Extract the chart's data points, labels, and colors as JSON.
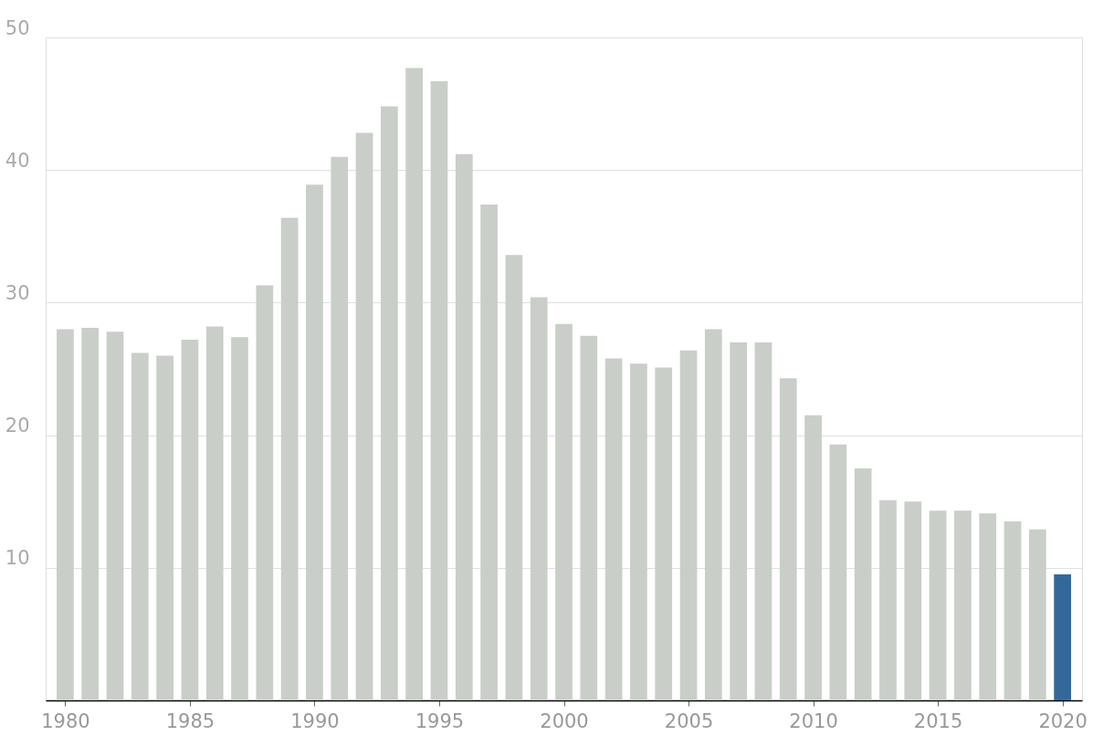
{
  "chart_data": {
    "type": "bar",
    "x": [
      1980,
      1981,
      1982,
      1983,
      1984,
      1985,
      1986,
      1987,
      1988,
      1989,
      1990,
      1991,
      1992,
      1993,
      1994,
      1995,
      1996,
      1997,
      1998,
      1999,
      2000,
      2001,
      2002,
      2003,
      2004,
      2005,
      2006,
      2007,
      2008,
      2009,
      2010,
      2011,
      2012,
      2013,
      2014,
      2015,
      2016,
      2017,
      2018,
      2019,
      2020
    ],
    "values": [
      28.0,
      28.1,
      27.8,
      26.2,
      26.0,
      27.2,
      28.2,
      27.4,
      31.3,
      36.4,
      38.9,
      41.0,
      42.8,
      44.8,
      47.7,
      46.7,
      41.2,
      37.4,
      33.6,
      30.4,
      28.4,
      27.5,
      25.8,
      25.4,
      25.1,
      26.4,
      28.0,
      27.0,
      27.0,
      24.3,
      21.5,
      19.3,
      17.5,
      15.1,
      15.0,
      14.3,
      14.3,
      14.1,
      13.5,
      12.9,
      9.5
    ],
    "colors": [
      "#c9cec9",
      "#c9cec9",
      "#c9cec9",
      "#c9cec9",
      "#c9cec9",
      "#c9cec9",
      "#c9cec9",
      "#c9cec9",
      "#c9cec9",
      "#c9cec9",
      "#c9cec9",
      "#c9cec9",
      "#c9cec9",
      "#c9cec9",
      "#c9cec9",
      "#c9cec9",
      "#c9cec9",
      "#c9cec9",
      "#c9cec9",
      "#c9cec9",
      "#c9cec9",
      "#c9cec9",
      "#c9cec9",
      "#c9cec9",
      "#c9cec9",
      "#c9cec9",
      "#c9cec9",
      "#c9cec9",
      "#c9cec9",
      "#c9cec9",
      "#c9cec9",
      "#c9cec9",
      "#c9cec9",
      "#c9cec9",
      "#c9cec9",
      "#c9cec9",
      "#c9cec9",
      "#c9cec9",
      "#c9cec9",
      "#c9cec9",
      "#35689a"
    ],
    "xlim": [
      1979.4,
      2020.6
    ],
    "xticks": [
      1980,
      1985,
      1990,
      1995,
      2000,
      2005,
      2010,
      2015,
      2020
    ],
    "ylim": [
      0,
      50
    ],
    "yticks": [
      10,
      20,
      30,
      40,
      50
    ],
    "grid": "y"
  }
}
